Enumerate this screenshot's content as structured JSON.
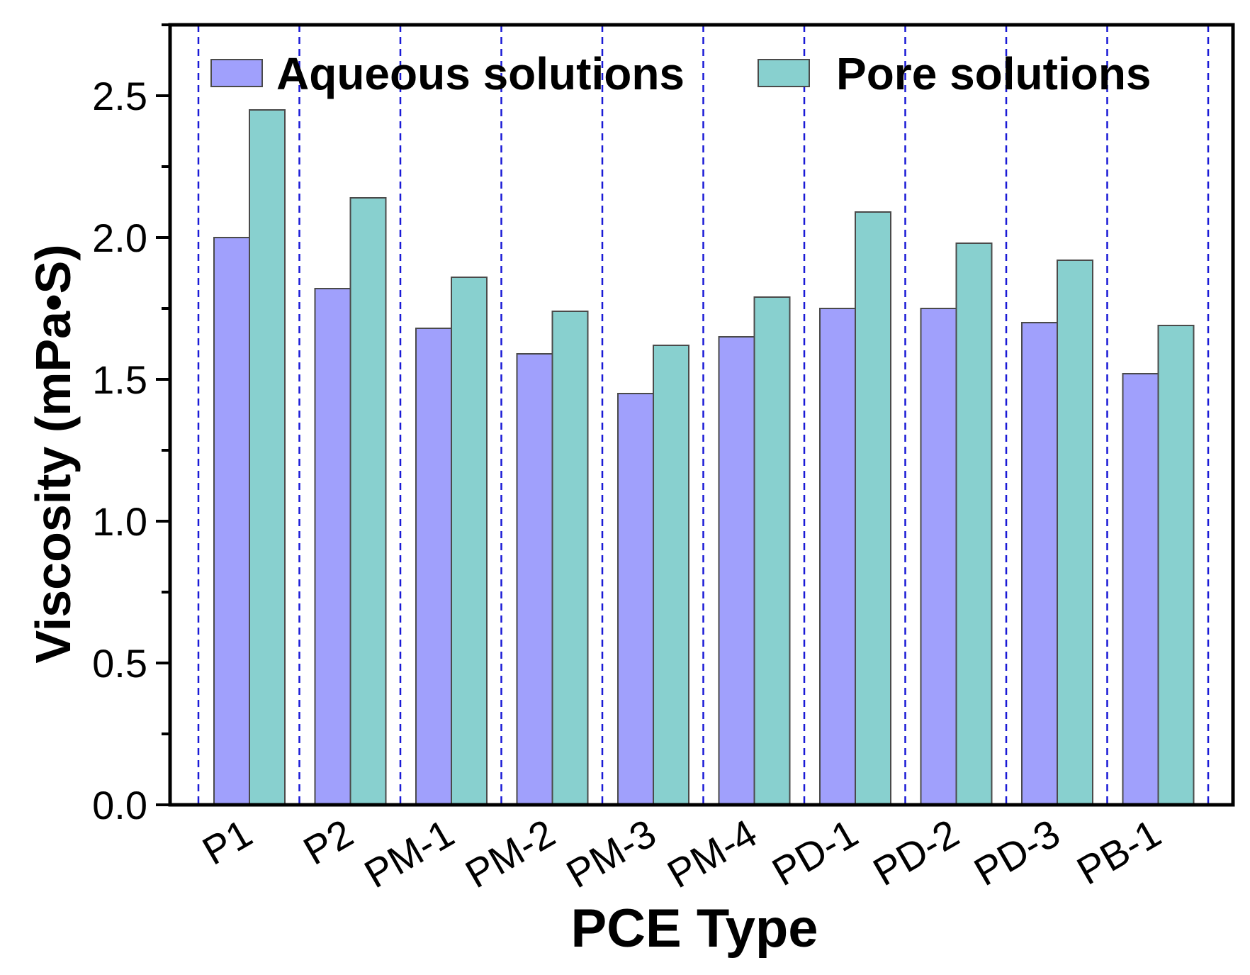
{
  "chart_data": {
    "type": "bar",
    "xlabel": "PCE Type",
    "ylabel": "Viscosity (mPa•S)",
    "categories": [
      "P1",
      "P2",
      "PM-1",
      "PM-2",
      "PM-3",
      "PM-4",
      "PD-1",
      "PD-2",
      "PD-3",
      "PB-1"
    ],
    "series": [
      {
        "name": "Aqueous solutions",
        "color": "#a0a0fc",
        "values": [
          2.0,
          1.82,
          1.68,
          1.59,
          1.45,
          1.65,
          1.75,
          1.75,
          1.7,
          1.52
        ]
      },
      {
        "name": "Pore solutions",
        "color": "#88d0cf",
        "values": [
          2.45,
          2.14,
          1.86,
          1.74,
          1.62,
          1.79,
          2.09,
          1.98,
          1.92,
          1.69
        ]
      }
    ],
    "ylim": [
      0,
      2.75
    ],
    "yticks": [
      "0.0",
      "0.5",
      "1.0",
      "1.5",
      "2.0",
      "2.5"
    ],
    "grid": "vertical dashed category separators",
    "legend_position": "top"
  }
}
